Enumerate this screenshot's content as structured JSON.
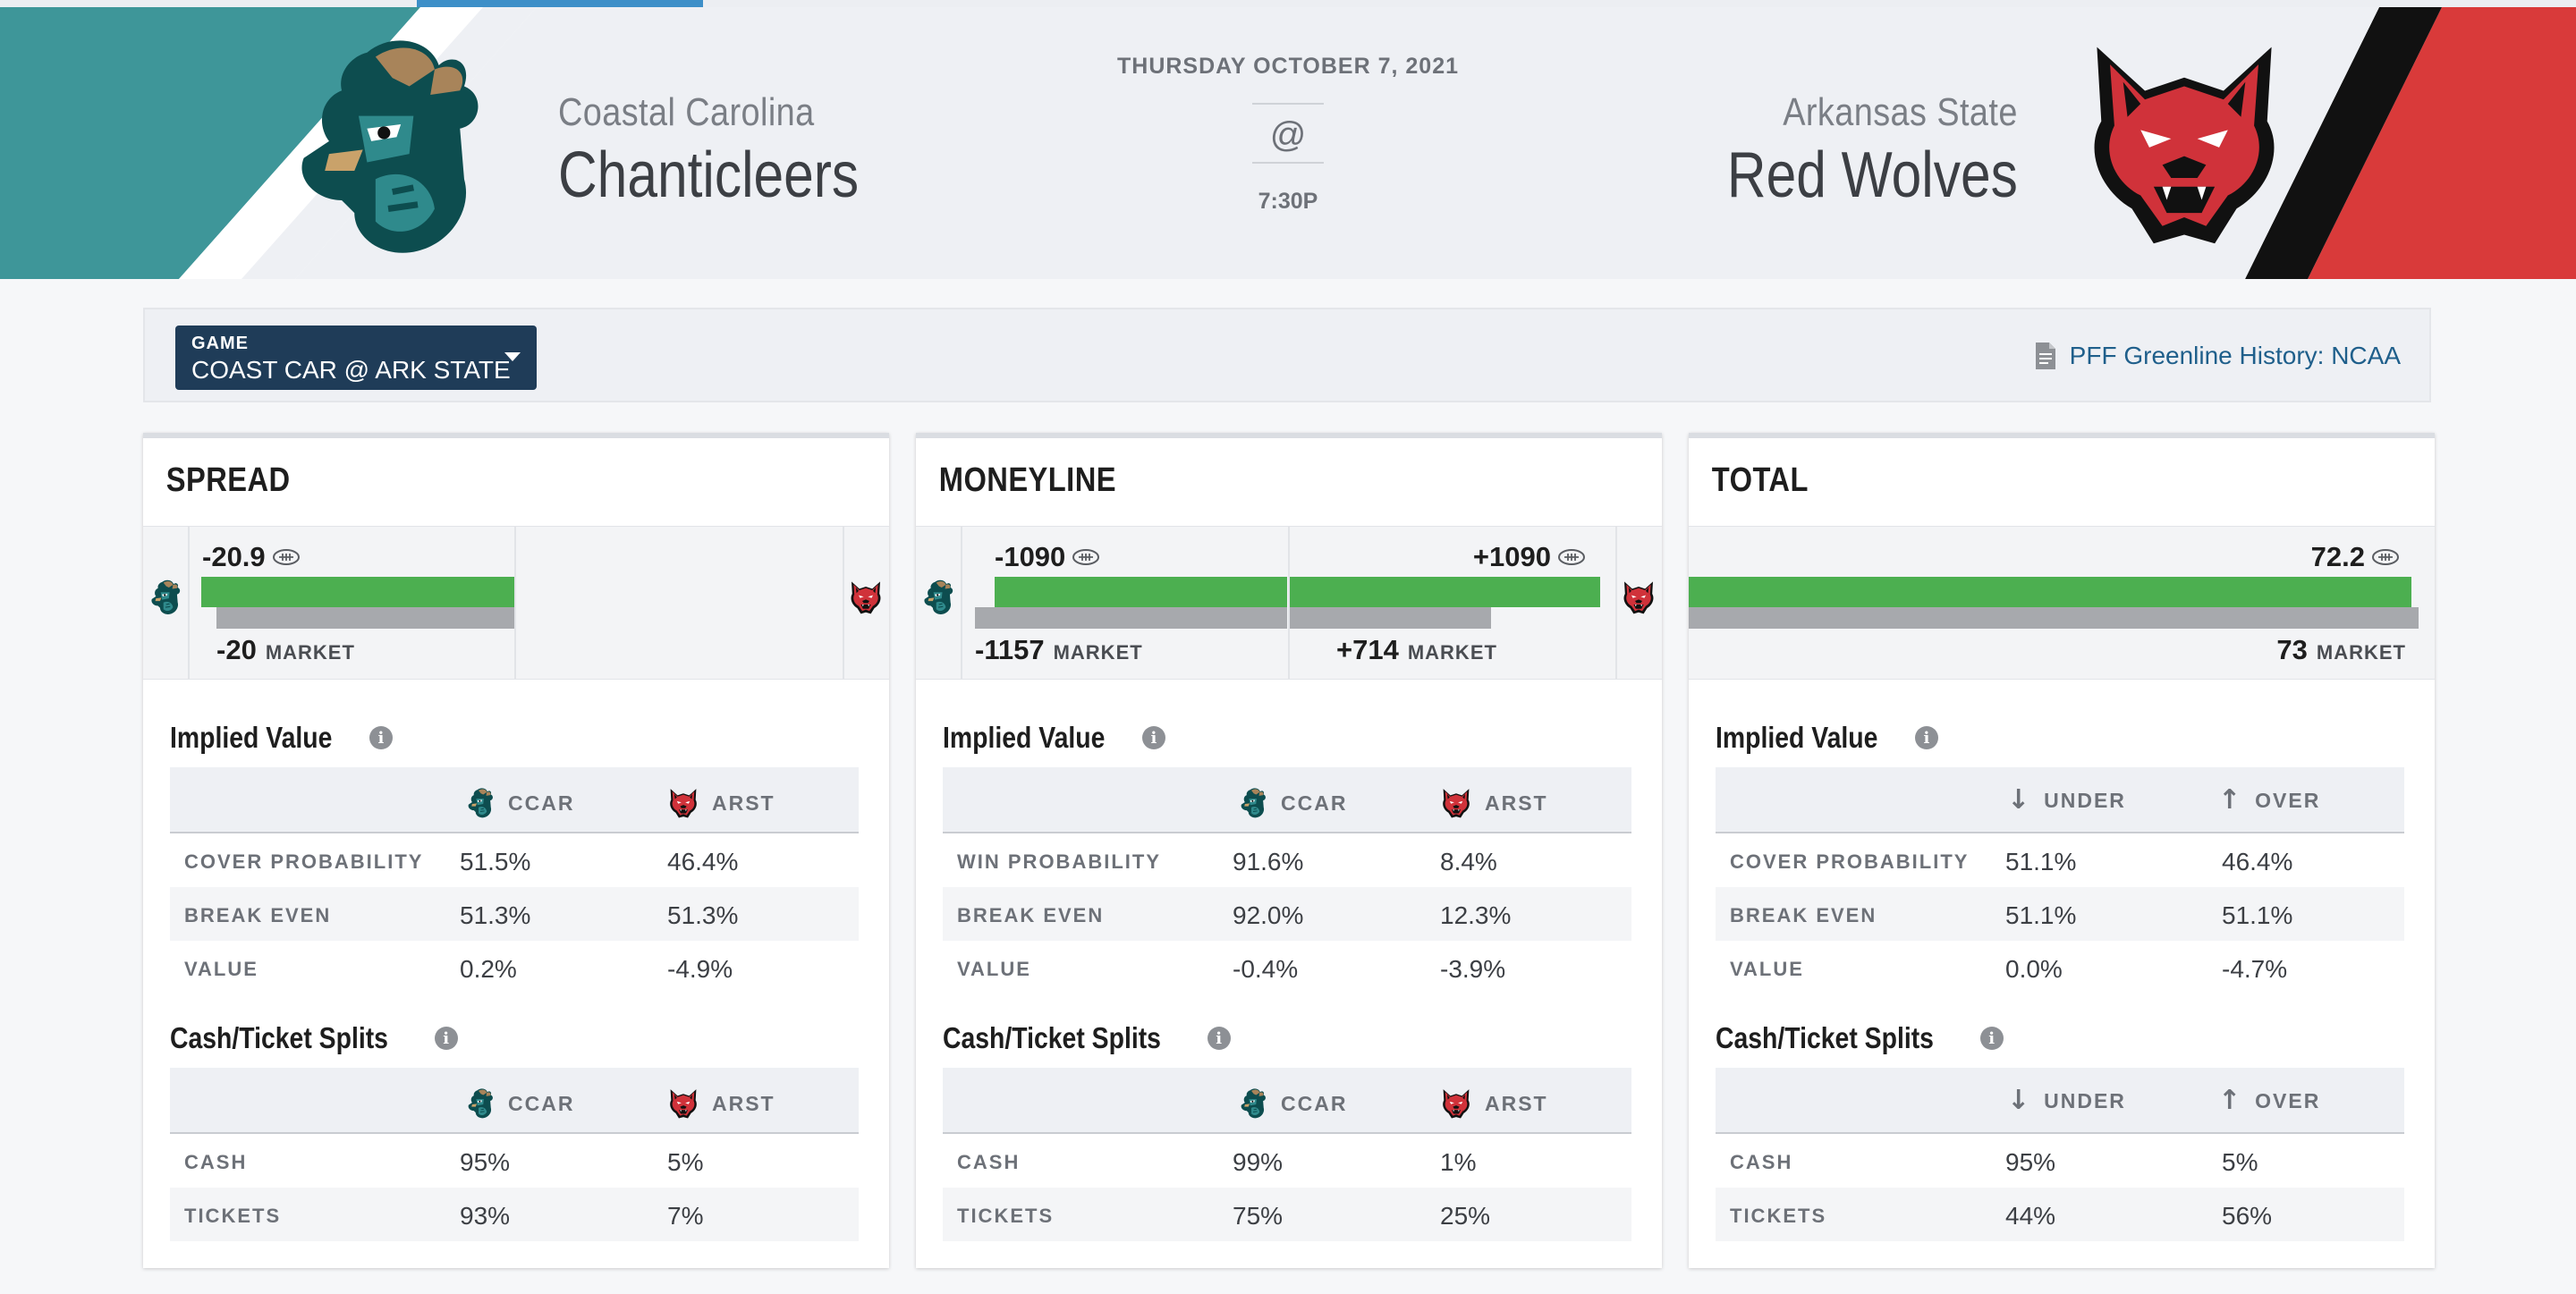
{
  "colors": {
    "away_primary": "#3e9699",
    "home_primary": "#d93a3a",
    "accent_blue": "#3d8fc8",
    "navy": "#1f3c58",
    "green": "#4caf50",
    "gray_bar": "#a7a9ad"
  },
  "header": {
    "away": {
      "city": "Coastal Carolina",
      "name": "Chanticleers",
      "logo_icon": "chanticleer-logo-icon"
    },
    "home": {
      "city": "Arkansas State",
      "name": "Red Wolves",
      "logo_icon": "red-wolf-logo-icon"
    },
    "date": "THURSDAY OCTOBER 7, 2021",
    "at_symbol": "@",
    "time": "7:30P"
  },
  "selector": {
    "label": "GAME",
    "value": "COAST CAR @ ARK STATE",
    "history_link": "PFF Greenline History: NCAA",
    "history_icon": "document-icon"
  },
  "market_word": "MARKET",
  "cards": {
    "spread": {
      "title": "SPREAD",
      "greenline": "-20.9",
      "market": "-20",
      "green_fraction": 0.5,
      "market_fraction": 0.48,
      "implied": {
        "title": "Implied Value",
        "col1": "CCAR",
        "col2": "ARST",
        "rows": [
          {
            "label": "COVER PROBABILITY",
            "v1": "51.5%",
            "v2": "46.4%"
          },
          {
            "label": "BREAK EVEN",
            "v1": "51.3%",
            "v2": "51.3%"
          },
          {
            "label": "VALUE",
            "v1": "0.2%",
            "v2": "-4.9%"
          }
        ]
      },
      "splits": {
        "title": "Cash/Ticket Splits",
        "col1": "CCAR",
        "col2": "ARST",
        "rows": [
          {
            "label": "CASH",
            "v1": "95%",
            "v2": "5%"
          },
          {
            "label": "TICKETS",
            "v1": "93%",
            "v2": "7%"
          }
        ]
      }
    },
    "moneyline": {
      "title": "MONEYLINE",
      "away_greenline": "-1090",
      "home_greenline": "+1090",
      "away_market": "-1157",
      "home_market": "+714",
      "implied": {
        "title": "Implied Value",
        "col1": "CCAR",
        "col2": "ARST",
        "rows": [
          {
            "label": "WIN PROBABILITY",
            "v1": "91.6%",
            "v2": "8.4%"
          },
          {
            "label": "BREAK EVEN",
            "v1": "92.0%",
            "v2": "12.3%"
          },
          {
            "label": "VALUE",
            "v1": "-0.4%",
            "v2": "-3.9%"
          }
        ]
      },
      "splits": {
        "title": "Cash/Ticket Splits",
        "col1": "CCAR",
        "col2": "ARST",
        "rows": [
          {
            "label": "CASH",
            "v1": "99%",
            "v2": "1%"
          },
          {
            "label": "TICKETS",
            "v1": "75%",
            "v2": "25%"
          }
        ]
      }
    },
    "total": {
      "title": "TOTAL",
      "greenline": "72.2",
      "market": "73",
      "implied": {
        "title": "Implied Value",
        "col1": "UNDER",
        "col2": "OVER",
        "rows": [
          {
            "label": "COVER PROBABILITY",
            "v1": "51.1%",
            "v2": "46.4%"
          },
          {
            "label": "BREAK EVEN",
            "v1": "51.1%",
            "v2": "51.1%"
          },
          {
            "label": "VALUE",
            "v1": "0.0%",
            "v2": "-4.7%"
          }
        ]
      },
      "splits": {
        "title": "Cash/Ticket Splits",
        "col1": "UNDER",
        "col2": "OVER",
        "rows": [
          {
            "label": "CASH",
            "v1": "95%",
            "v2": "5%"
          },
          {
            "label": "TICKETS",
            "v1": "44%",
            "v2": "56%"
          }
        ]
      }
    }
  }
}
